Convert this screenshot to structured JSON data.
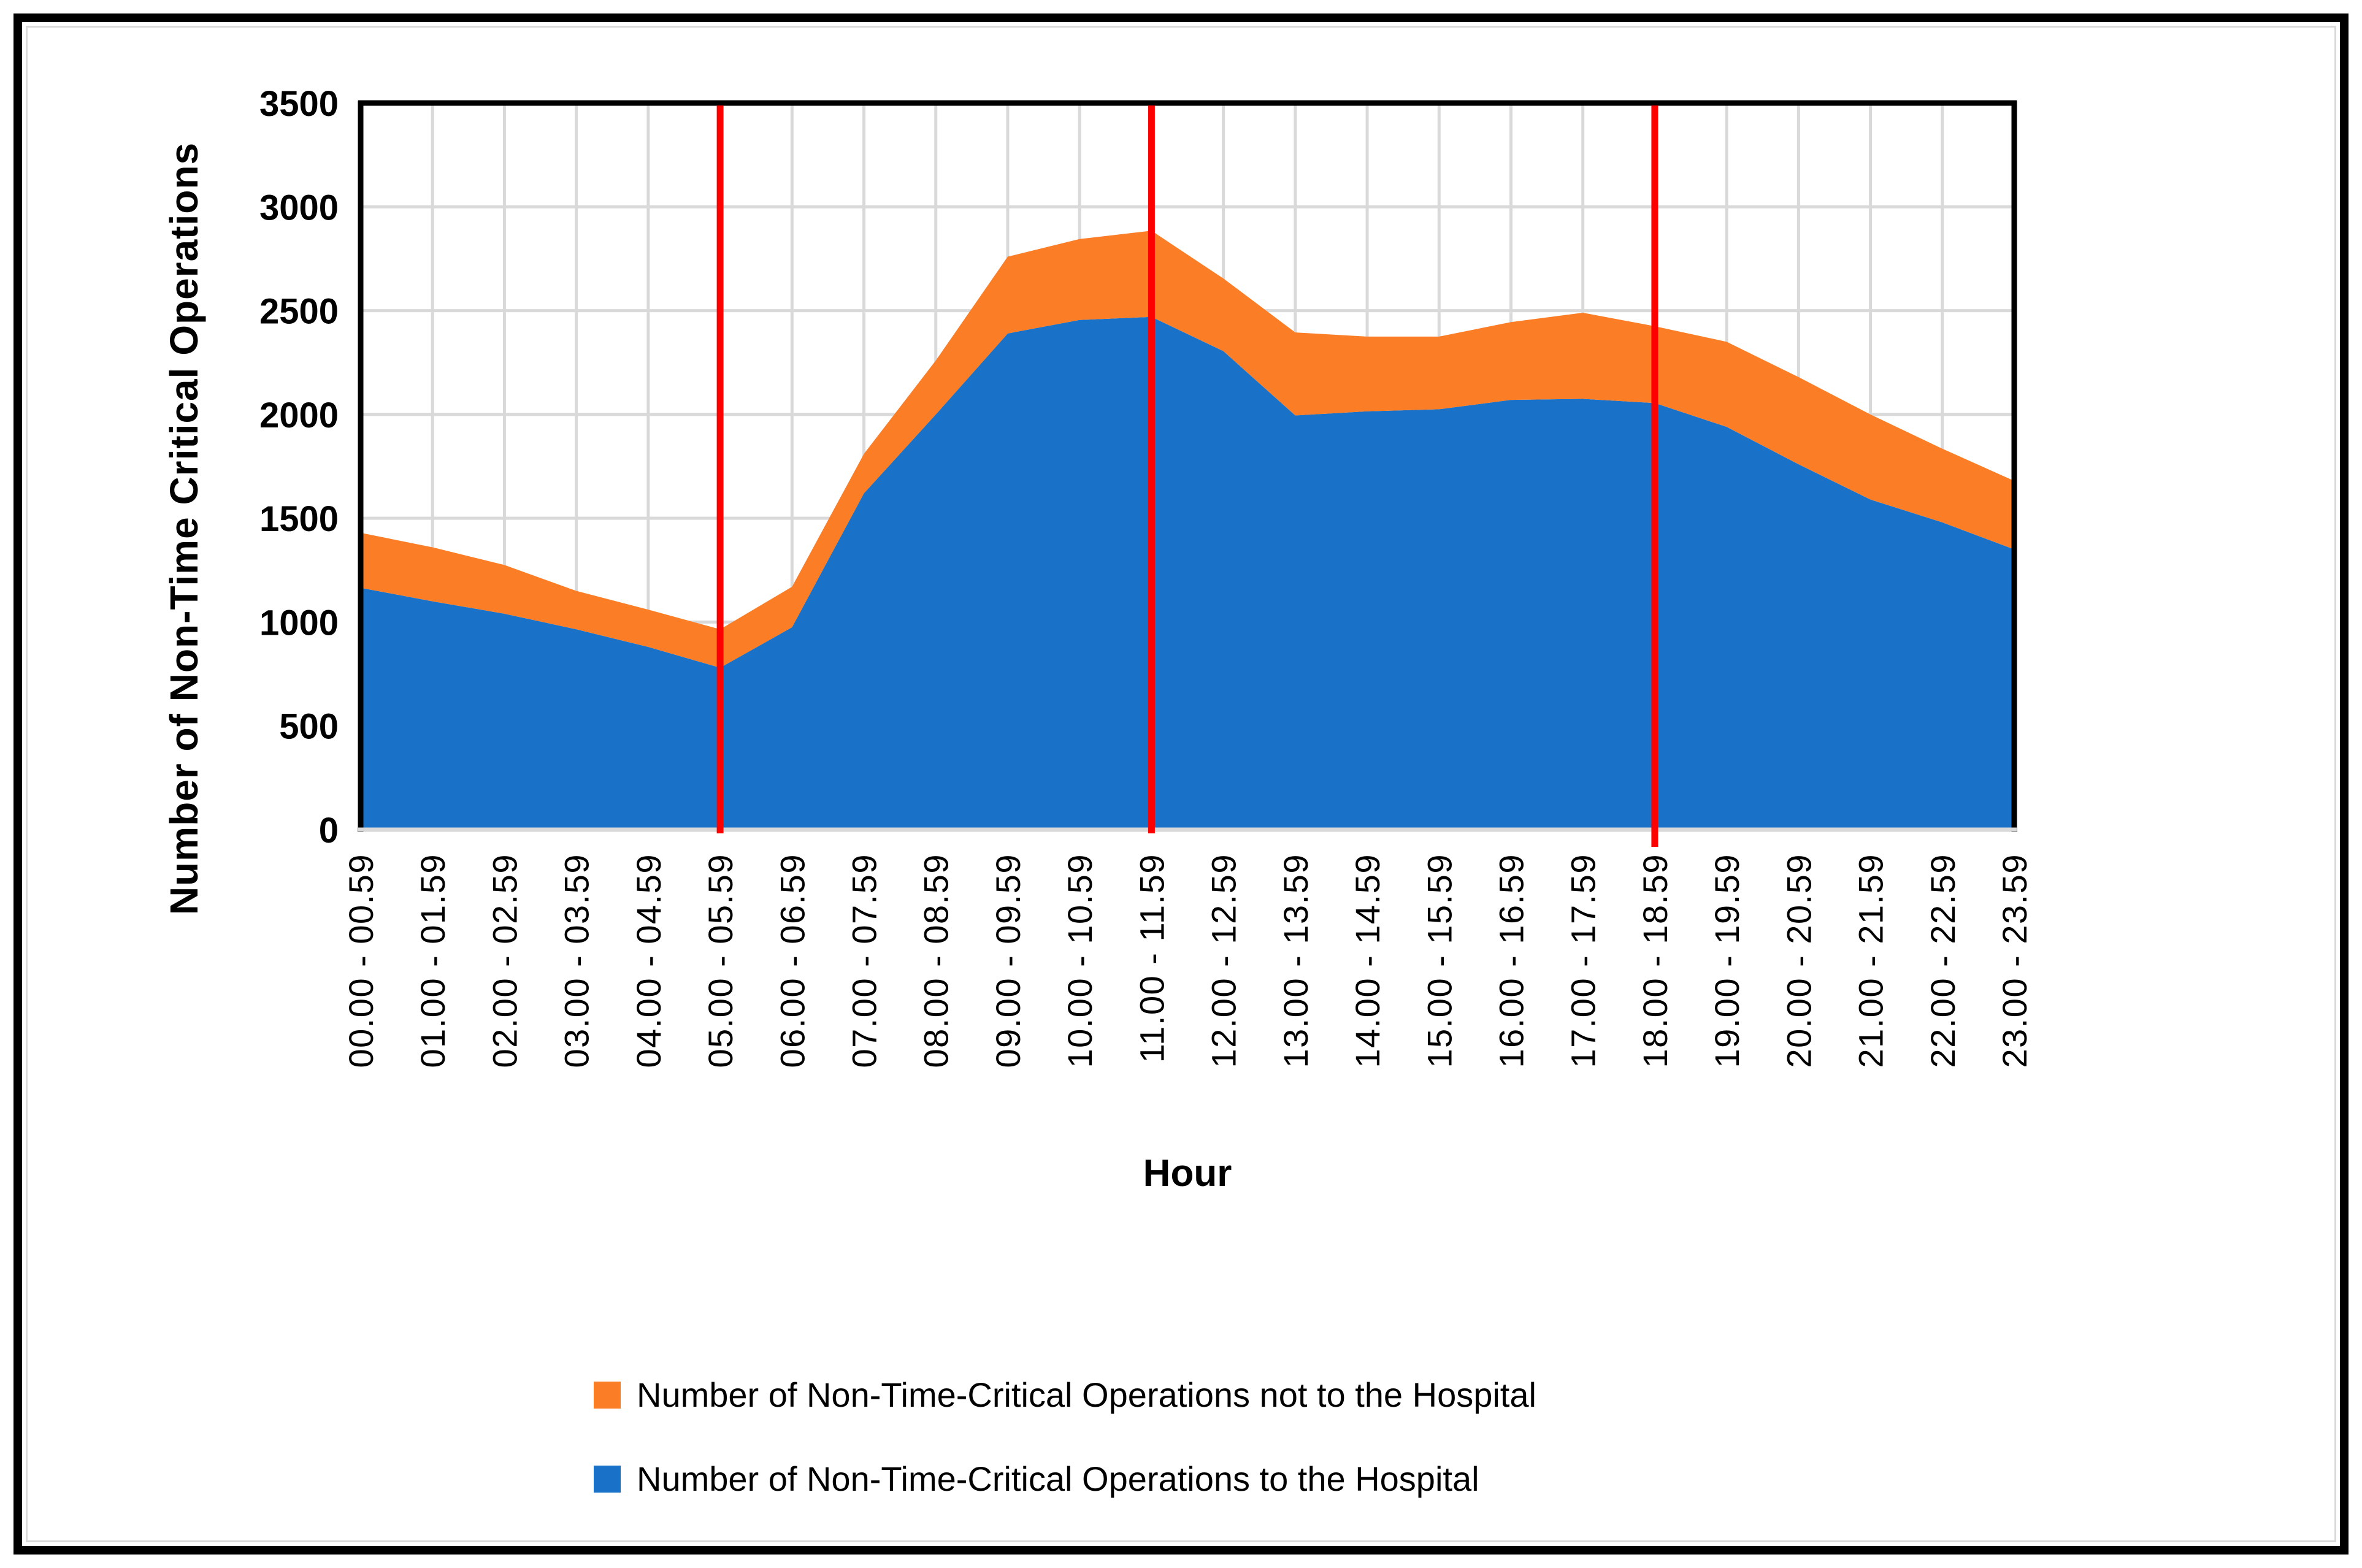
{
  "figure": {
    "y_axis_title": "Number of Non-Time Critical Operations",
    "x_axis_title": "Hour"
  },
  "legend": [
    {
      "label": "Number of Non-Time-Critical Operations not to the Hospital",
      "color": "#FB7D26",
      "marker": "square"
    },
    {
      "label": "Number of Non-Time-Critical Operations to the Hospital",
      "color": "#1972C8",
      "marker": "square"
    }
  ],
  "chart_data": {
    "type": "area",
    "stacked": true,
    "title": "",
    "xlabel": "Hour",
    "ylabel": "Number of Non-Time Critical Operations",
    "ylim": [
      0,
      3500
    ],
    "ytick_step": 500,
    "grid": true,
    "legend_position": "bottom",
    "categories": [
      "00.00 - 00.59",
      "01.00 - 01.59",
      "02.00 - 02.59",
      "03.00 - 03.59",
      "04.00 - 04.59",
      "05.00 - 05.59",
      "06.00 - 06.59",
      "07.00 - 07.59",
      "08.00 - 08.59",
      "09.00 - 09.59",
      "10.00 - 10.59",
      "11.00 - 11.59",
      "12.00 - 12.59",
      "13.00 - 13.59",
      "14.00 - 14.59",
      "15.00 - 15.59",
      "16.00 - 16.59",
      "17.00 - 17.59",
      "18.00 - 18.59",
      "19.00 - 19.59",
      "20.00 - 20.59",
      "21.00 - 21.59",
      "22.00 - 22.59",
      "23.00 - 23.59"
    ],
    "series": [
      {
        "name": "Number of Non-Time-Critical Operations to the Hospital",
        "color": "#1972C8",
        "values": [
          1165,
          1100,
          1040,
          965,
          880,
          780,
          975,
          1620,
          2000,
          2390,
          2455,
          2470,
          2305,
          1995,
          2015,
          2025,
          2070,
          2075,
          2055,
          1940,
          1760,
          1590,
          1480,
          1350
        ]
      },
      {
        "name": "Number of Non-Time-Critical Operations not to the Hospital",
        "color": "#FB7D26",
        "values": [
          265,
          260,
          235,
          185,
          180,
          185,
          195,
          190,
          260,
          370,
          390,
          415,
          350,
          400,
          360,
          350,
          375,
          415,
          370,
          410,
          420,
          410,
          355,
          330
        ]
      }
    ],
    "red_vertical_lines_at": [
      "05.00 - 05.59",
      "11.00 - 11.59",
      "18.00 - 18.59"
    ],
    "colors": {
      "grid": "#D9D9D9",
      "axis_line_bottom": "#D9D9D9",
      "plot_border": "#000000",
      "red_line": "#FF0000",
      "tick_text": "#000000"
    }
  }
}
